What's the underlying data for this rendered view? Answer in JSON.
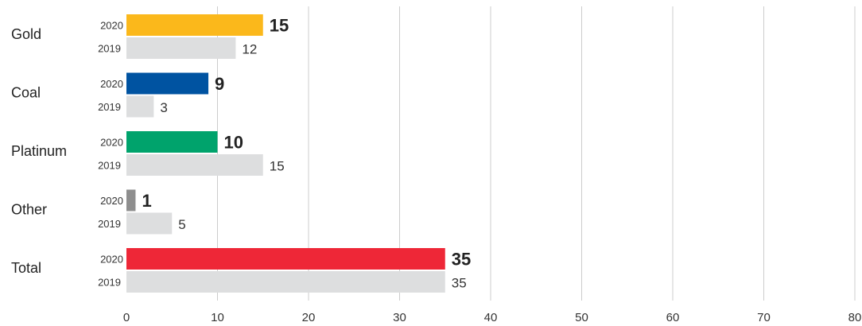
{
  "chart_data": {
    "type": "bar",
    "orientation": "horizontal",
    "categories": [
      "Gold",
      "Coal",
      "Platinum",
      "Other",
      "Total"
    ],
    "series": [
      {
        "name": "2020",
        "values": [
          15,
          9,
          10,
          1,
          35
        ],
        "colors": [
          "#FBB81B",
          "#0053A1",
          "#00A36C",
          "#8E8E8E",
          "#EE2737"
        ]
      },
      {
        "name": "2019",
        "values": [
          12,
          3,
          15,
          5,
          35
        ],
        "color": "#DDDEDF"
      }
    ],
    "xlim": [
      0,
      80
    ],
    "xticks": [
      0,
      10,
      20,
      30,
      40,
      50,
      60,
      70,
      80
    ],
    "grid": "vertical",
    "title": "",
    "xlabel": "",
    "ylabel": ""
  }
}
